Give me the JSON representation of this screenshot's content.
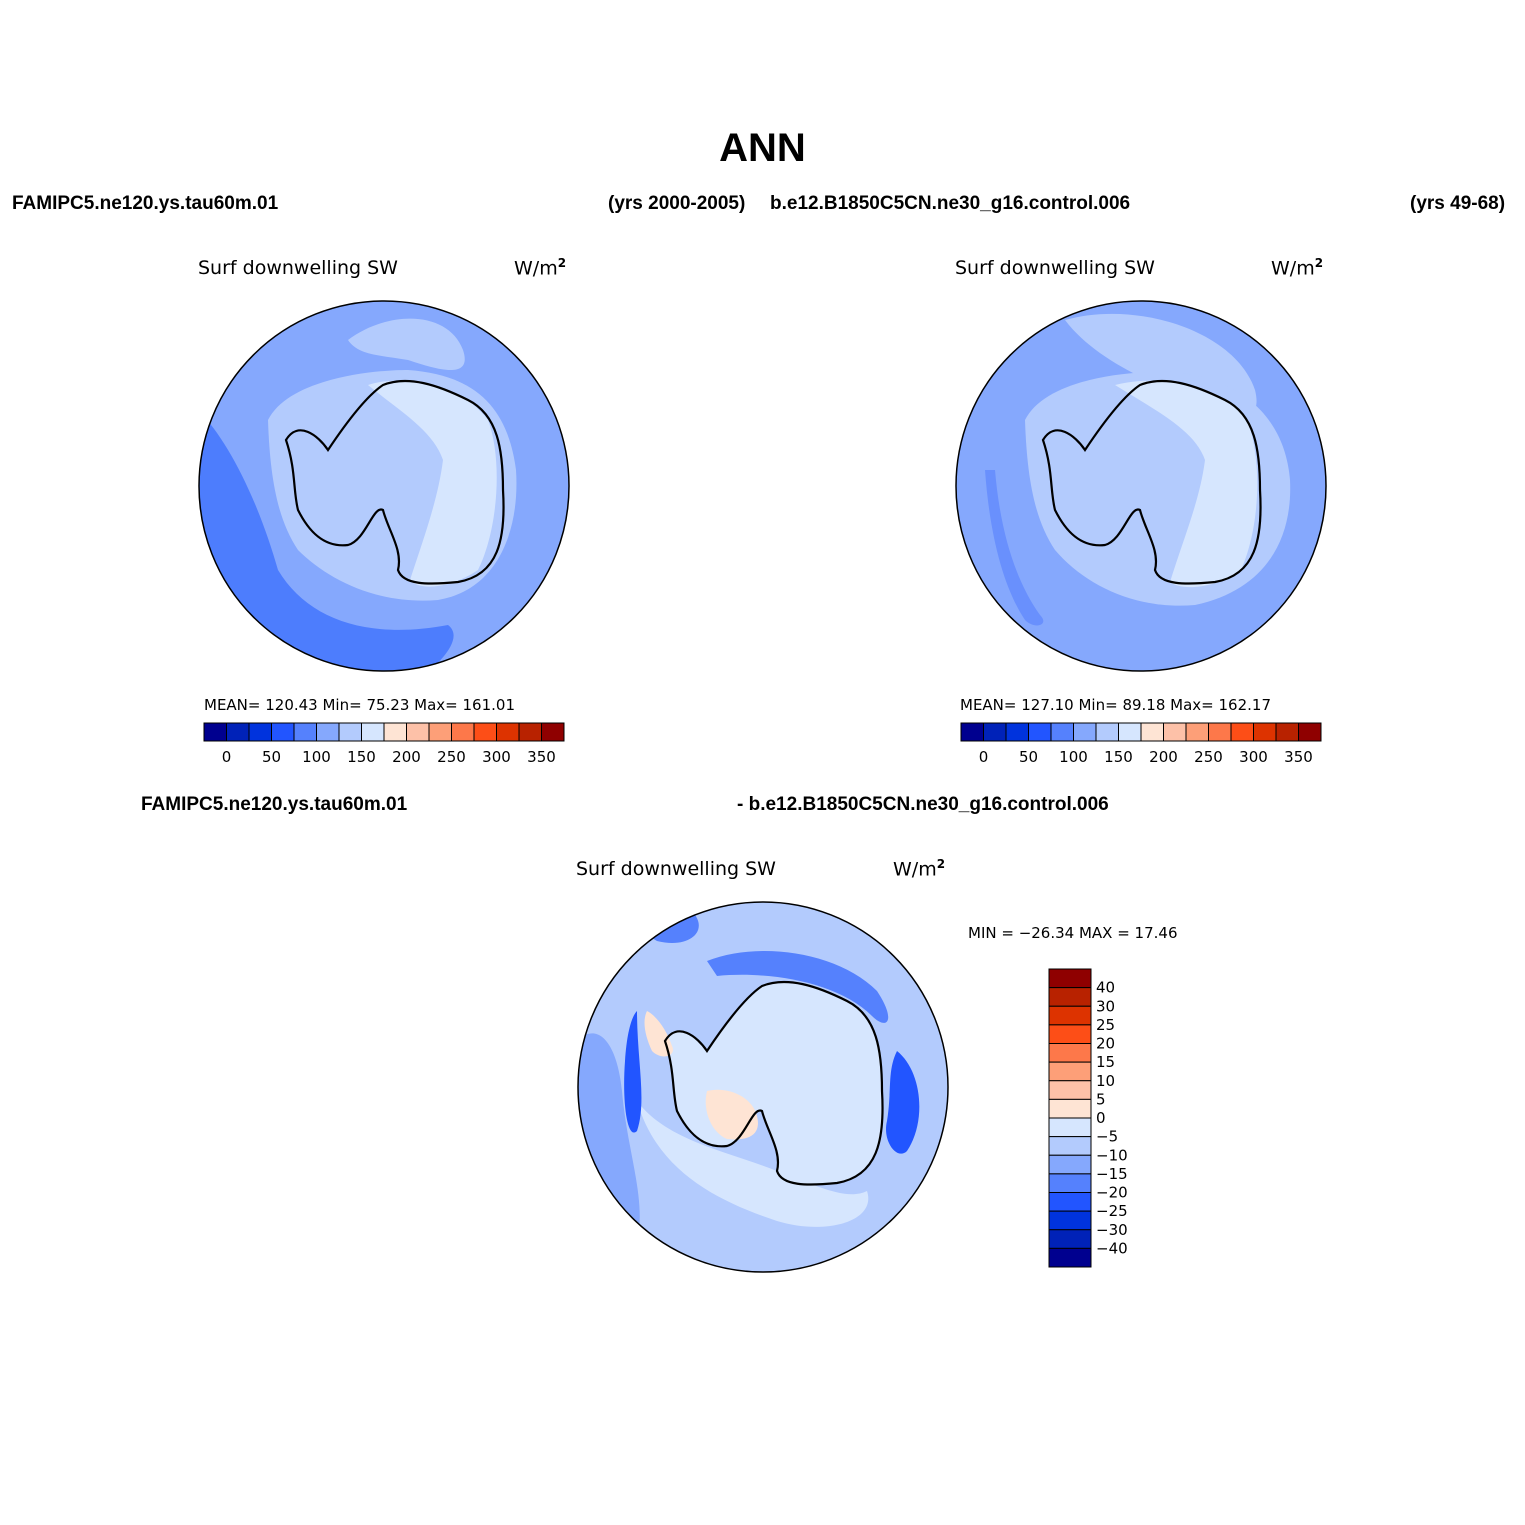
{
  "title": "ANN",
  "top_row": {
    "left_case": "FAMIPC5.ne120.ys.tau60m.01",
    "left_years": "(yrs 2000-2005)",
    "right_case": "b.e12.B1850C5CN.ne30_g16.control.006",
    "right_years": "(yrs 49-68)"
  },
  "diff_row": {
    "left_case": "FAMIPC5.ne120.ys.tau60m.01",
    "right_case": "- b.e12.B1850C5CN.ne30_g16.control.006"
  },
  "panels": {
    "a": {
      "title": "Surf downwelling SW",
      "unit": "W/m",
      "unit_exp": "2",
      "stats": "MEAN= 120.43   Min=   75.23   Max=  161.01",
      "mean": 120.43,
      "min": 75.23,
      "max": 161.01,
      "fill_colors": {
        "background": "#85a8fd",
        "outer": "#4d7dfd",
        "inner": "#b3cbfd",
        "land": "#d6e6fe",
        "coast": "#000000"
      }
    },
    "b": {
      "title": "Surf downwelling SW",
      "unit": "W/m",
      "unit_exp": "2",
      "stats": "MEAN= 127.10   Min=   89.18   Max=  162.17",
      "mean": 127.1,
      "min": 89.18,
      "max": 162.17,
      "fill_colors": {
        "background": "#85a8fd",
        "outer": "#6990fd",
        "inner": "#b3cbfd",
        "land": "#d6e6fe",
        "coast": "#000000"
      }
    },
    "diff": {
      "title": "Surf downwelling SW",
      "unit": "W/m",
      "unit_exp": "2",
      "stats": "MIN = −26.34 MAX =   17.46",
      "min": -26.34,
      "max": 17.46
    }
  },
  "colorbar_main": {
    "colors": [
      "#00008f",
      "#0022b8",
      "#0033dd",
      "#2255ff",
      "#5581fd",
      "#85a8fd",
      "#b3cbfd",
      "#d6e6fe",
      "#fee4d4",
      "#fdc1a8",
      "#fd9f78",
      "#fd784a",
      "#fd4e17",
      "#dd3300",
      "#b82200",
      "#8f0000"
    ],
    "labels": [
      "0",
      "50",
      "100",
      "150",
      "200",
      "250",
      "300",
      "350"
    ]
  },
  "colorbar_diff": {
    "colors": [
      "#00008f",
      "#0022b8",
      "#0033dd",
      "#2255ff",
      "#5581fd",
      "#85a8fd",
      "#b3cbfd",
      "#d6e6fe",
      "#fee4d4",
      "#fdc1a8",
      "#fd9f78",
      "#fd784a",
      "#fd4e17",
      "#dd3300",
      "#b82200",
      "#8f0000"
    ],
    "labels": [
      "−40",
      "−30",
      "−25",
      "−20",
      "−15",
      "−10",
      "−5",
      "0",
      "5",
      "10",
      "15",
      "20",
      "25",
      "30",
      "40"
    ]
  }
}
